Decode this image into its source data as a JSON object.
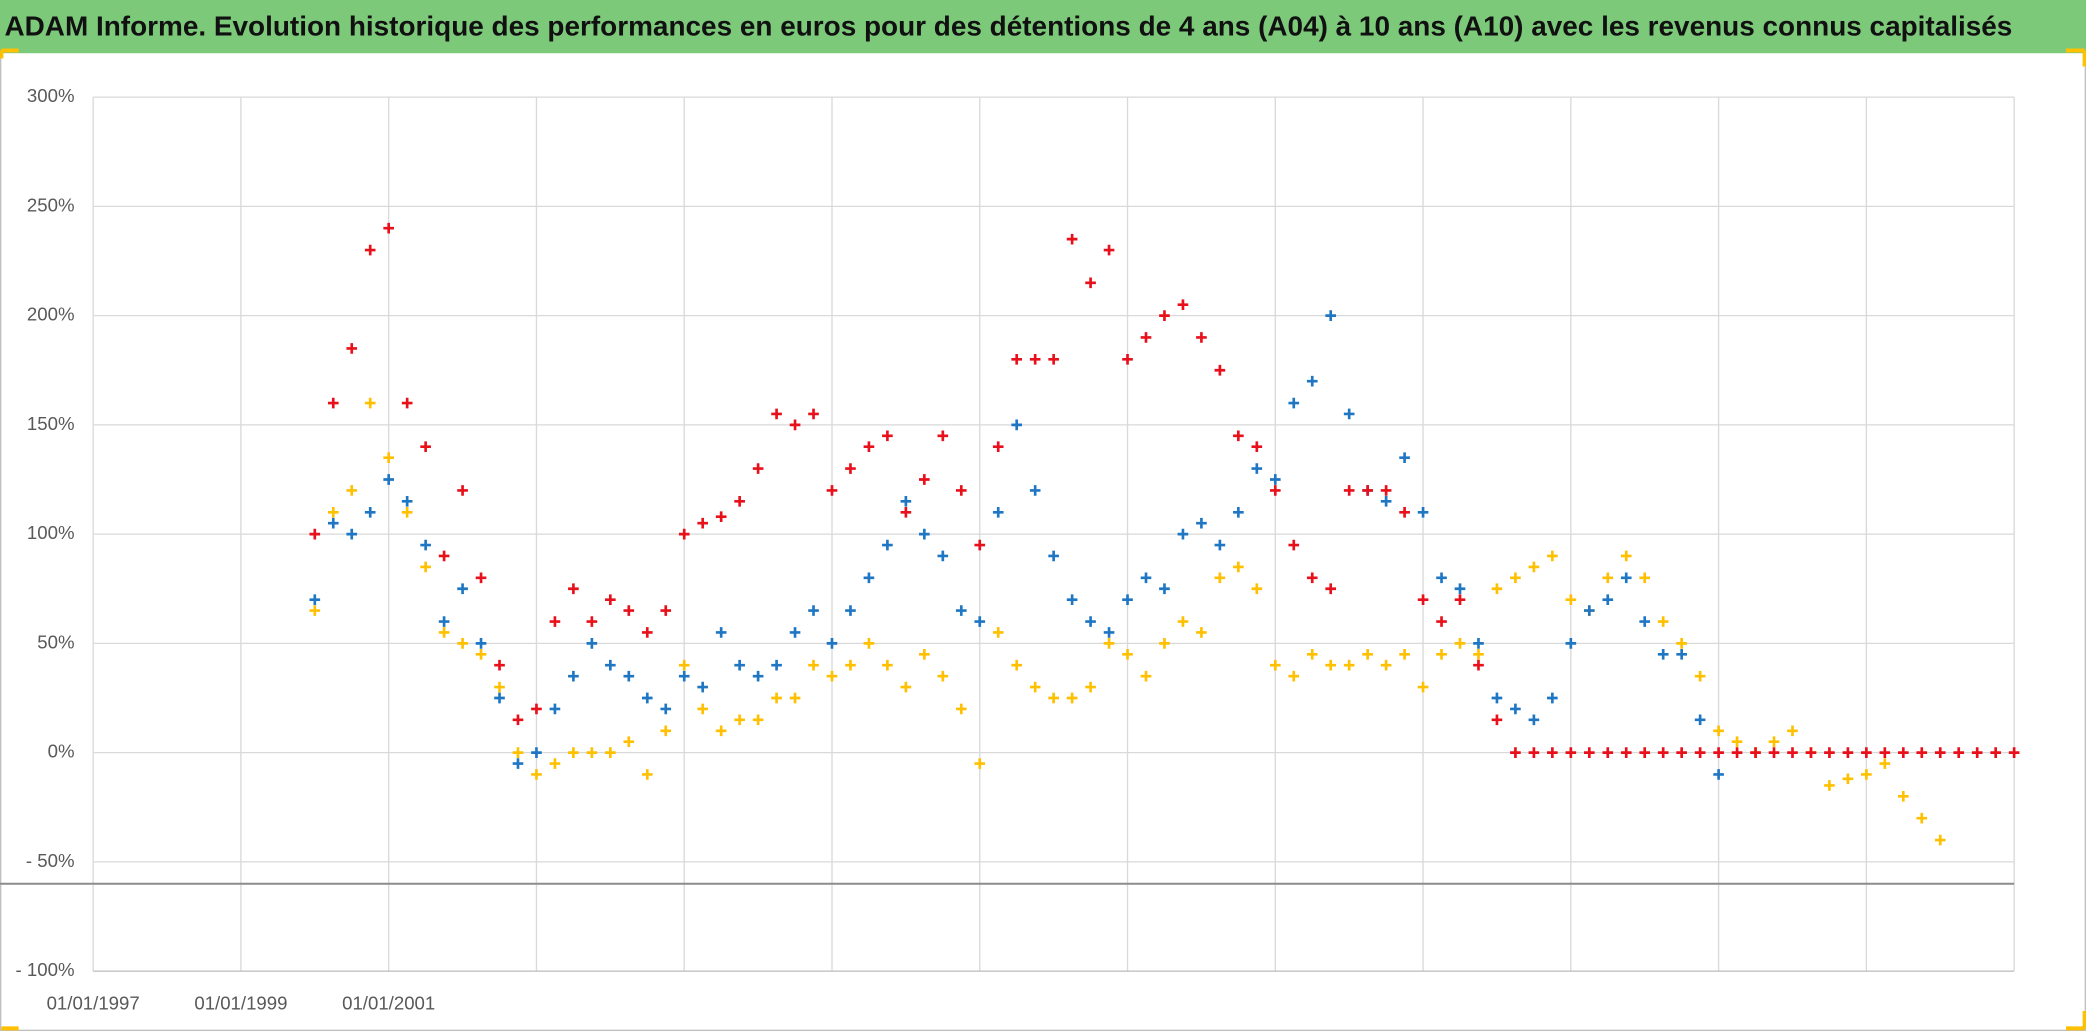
{
  "chart_data": {
    "type": "scatter",
    "title": "ADAM Informe. Evolution historique des performances en euros pour des détentions de 4 ans (A04) à 10 ans (A10) avec les revenus connus capitalisés",
    "x": [
      2000,
      2000.25,
      2000.5,
      2000.75,
      2001,
      2001.25,
      2001.5,
      2001.75,
      2002,
      2002.25,
      2002.5,
      2002.75,
      2003,
      2003.25,
      2003.5,
      2003.75,
      2004,
      2004.25,
      2004.5,
      2004.75,
      2005,
      2005.25,
      2005.5,
      2005.75,
      2006,
      2006.25,
      2006.5,
      2006.75,
      2007,
      2007.25,
      2007.5,
      2007.75,
      2008,
      2008.25,
      2008.5,
      2008.75,
      2009,
      2009.25,
      2009.5,
      2009.75,
      2010,
      2010.25,
      2010.5,
      2010.75,
      2011,
      2011.25,
      2011.5,
      2011.75,
      2012,
      2012.25,
      2012.5,
      2012.75,
      2013,
      2013.25,
      2013.5,
      2013.75,
      2014,
      2014.25,
      2014.5,
      2014.75,
      2015,
      2015.25,
      2015.5,
      2015.75,
      2016,
      2016.25,
      2016.5,
      2016.75,
      2017,
      2017.25,
      2017.5,
      2017.75,
      2018,
      2018.25,
      2018.5,
      2018.75,
      2019,
      2019.25,
      2019.5,
      2019.75,
      2020,
      2020.25,
      2020.5,
      2020.75,
      2021,
      2021.25,
      2021.5,
      2021.75,
      2022,
      2022.25,
      2022.5,
      2022.75,
      2023
    ],
    "series": [
      {
        "color": "#ffc000",
        "values": [
          65,
          110,
          120,
          160,
          135,
          110,
          85,
          55,
          50,
          45,
          30,
          0,
          -10,
          -5,
          0,
          0,
          0,
          5,
          -10,
          10,
          40,
          20,
          10,
          15,
          15,
          25,
          25,
          40,
          35,
          40,
          50,
          40,
          30,
          45,
          35,
          20,
          -5,
          55,
          40,
          30,
          25,
          25,
          30,
          50,
          45,
          35,
          50,
          60,
          55,
          80,
          85,
          75,
          40,
          35,
          45,
          40,
          40,
          45,
          40,
          45,
          30,
          45,
          50,
          45,
          75,
          80,
          85,
          90,
          70,
          65,
          80,
          90,
          80,
          60,
          50,
          35,
          10,
          5,
          0,
          5,
          10,
          0,
          -15,
          -12,
          -10,
          -5,
          -20,
          -30,
          -40,
          null,
          null,
          null,
          null
        ]
      },
      {
        "color": "#1f77c4",
        "values": [
          70,
          105,
          100,
          110,
          125,
          115,
          95,
          60,
          75,
          50,
          25,
          -5,
          0,
          20,
          35,
          50,
          40,
          35,
          25,
          20,
          35,
          30,
          55,
          40,
          35,
          40,
          55,
          65,
          50,
          65,
          80,
          95,
          115,
          100,
          90,
          65,
          60,
          110,
          150,
          120,
          90,
          70,
          60,
          55,
          70,
          80,
          75,
          100,
          105,
          95,
          110,
          130,
          125,
          160,
          170,
          200,
          155,
          120,
          115,
          135,
          110,
          80,
          75,
          50,
          25,
          20,
          15,
          25,
          50,
          65,
          70,
          80,
          60,
          45,
          45,
          15,
          -10,
          null,
          null,
          null,
          null,
          null,
          null,
          null,
          null,
          null,
          null,
          null,
          null,
          null,
          null,
          null,
          null
        ]
      },
      {
        "color": "#e8101a",
        "values": [
          100,
          160,
          185,
          230,
          240,
          160,
          140,
          90,
          120,
          80,
          40,
          15,
          20,
          60,
          75,
          60,
          70,
          65,
          55,
          65,
          100,
          105,
          108,
          115,
          130,
          155,
          150,
          155,
          120,
          130,
          140,
          145,
          110,
          125,
          145,
          120,
          95,
          140,
          180,
          180,
          180,
          235,
          215,
          230,
          180,
          190,
          200,
          205,
          190,
          175,
          145,
          140,
          120,
          95,
          80,
          75,
          120,
          120,
          120,
          110,
          70,
          60,
          70,
          40,
          15,
          0,
          0,
          0,
          0,
          0,
          0,
          0,
          0,
          0,
          0,
          0,
          0,
          0,
          0,
          0,
          0,
          0,
          0,
          0,
          0,
          0,
          0,
          0,
          0,
          0,
          0,
          0,
          0
        ]
      }
    ],
    "xlim": [
      1997,
      2023
    ],
    "xticks": [
      {
        "value": 1997,
        "label": "01/01/1997"
      },
      {
        "value": 1999,
        "label": "01/01/1999"
      },
      {
        "value": 2001,
        "label": "01/01/2001"
      },
      {
        "value": 2003,
        "label": null
      },
      {
        "value": 2005,
        "label": null
      },
      {
        "value": 2007,
        "label": null
      },
      {
        "value": 2009,
        "label": null
      },
      {
        "value": 2011,
        "label": null
      },
      {
        "value": 2013,
        "label": null
      },
      {
        "value": 2015,
        "label": null
      },
      {
        "value": 2017,
        "label": null
      },
      {
        "value": 2019,
        "label": null
      },
      {
        "value": 2021,
        "label": null
      },
      {
        "value": 2023,
        "label": null
      }
    ],
    "ylim": [
      -100,
      300
    ],
    "yticks": [
      {
        "value": -100,
        "label": "- 100%"
      },
      {
        "value": -50,
        "label": "- 50%"
      },
      {
        "value": 0,
        "label": "0%"
      },
      {
        "value": 50,
        "label": "50%"
      },
      {
        "value": 100,
        "label": "100%"
      },
      {
        "value": 150,
        "label": "150%"
      },
      {
        "value": 200,
        "label": "200%"
      },
      {
        "value": 250,
        "label": "250%"
      },
      {
        "value": 300,
        "label": "300%"
      }
    ],
    "hline": -60,
    "grid": true
  }
}
